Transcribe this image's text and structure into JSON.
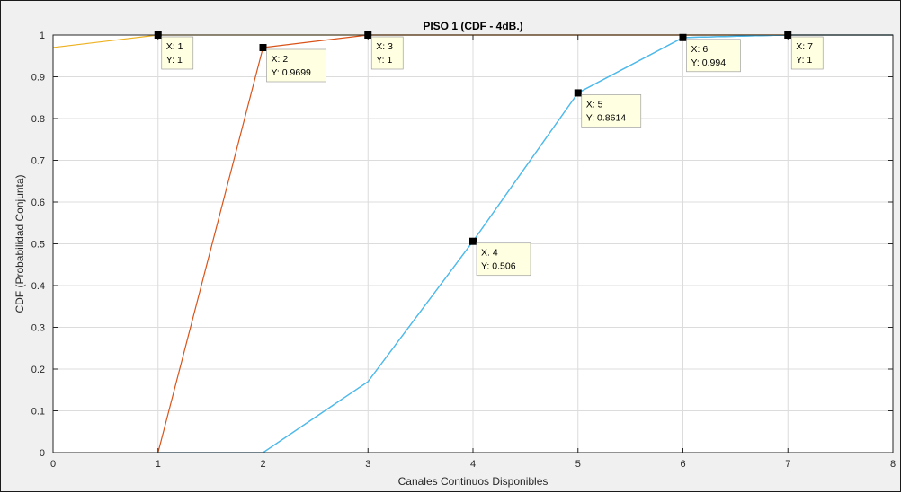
{
  "chart_data": {
    "type": "line",
    "title": "PISO 1 (CDF - 4dB.)",
    "xlabel": "Canales Continuos Disponibles",
    "ylabel": "CDF (Probabilidad Conjunta)",
    "xlim": [
      0,
      8
    ],
    "ylim": [
      0,
      1
    ],
    "xticks": [
      0,
      1,
      2,
      3,
      4,
      5,
      6,
      7,
      8
    ],
    "yticks": [
      0,
      0.1,
      0.2,
      0.3,
      0.4,
      0.5,
      0.6,
      0.7,
      0.8,
      0.9,
      1
    ],
    "grid": true,
    "legend": "none",
    "series": [
      {
        "color": "#edb120",
        "x": [
          0,
          1,
          2,
          3,
          4,
          5,
          6,
          7,
          8
        ],
        "y": [
          0.97,
          1,
          1,
          1,
          1,
          1,
          1,
          1,
          1
        ]
      },
      {
        "color": "#d95319",
        "x": [
          1,
          2,
          3,
          4,
          5,
          6,
          7,
          8
        ],
        "y": [
          0,
          0.9699,
          1,
          1,
          1,
          1,
          1,
          1
        ]
      },
      {
        "color": "#0072bd",
        "x": [
          1,
          2,
          3,
          4,
          5,
          6,
          7,
          8
        ],
        "y": [
          0,
          0,
          0.17,
          0.506,
          0.8614,
          0.994,
          1,
          1
        ]
      },
      {
        "color": "#4dbeee",
        "x": [
          2,
          3,
          4,
          5,
          6,
          7,
          8
        ],
        "y": [
          0,
          0.17,
          0.506,
          0.8614,
          0.994,
          1,
          1
        ]
      }
    ],
    "datatips": [
      {
        "x": 1,
        "y": 1,
        "x_text": "X: 1",
        "y_text": "Y: 1"
      },
      {
        "x": 2,
        "y": 0.9699,
        "x_text": "X: 2",
        "y_text": "Y: 0.9699"
      },
      {
        "x": 3,
        "y": 1,
        "x_text": "X: 3",
        "y_text": "Y: 1"
      },
      {
        "x": 4,
        "y": 0.506,
        "x_text": "X: 4",
        "y_text": "Y: 0.506"
      },
      {
        "x": 5,
        "y": 0.8614,
        "x_text": "X: 5",
        "y_text": "Y: 0.8614"
      },
      {
        "x": 6,
        "y": 0.994,
        "x_text": "X: 6",
        "y_text": "Y: 0.994"
      },
      {
        "x": 7,
        "y": 1,
        "x_text": "X: 7",
        "y_text": "Y: 1"
      }
    ],
    "colors": {
      "grid": "#dcdcdc",
      "axes": "#262626",
      "plot_bg": "#ffffff",
      "figure_bg": "#f0f0f0",
      "tip_bg": "#ffffe1",
      "marker": "#000000"
    }
  }
}
